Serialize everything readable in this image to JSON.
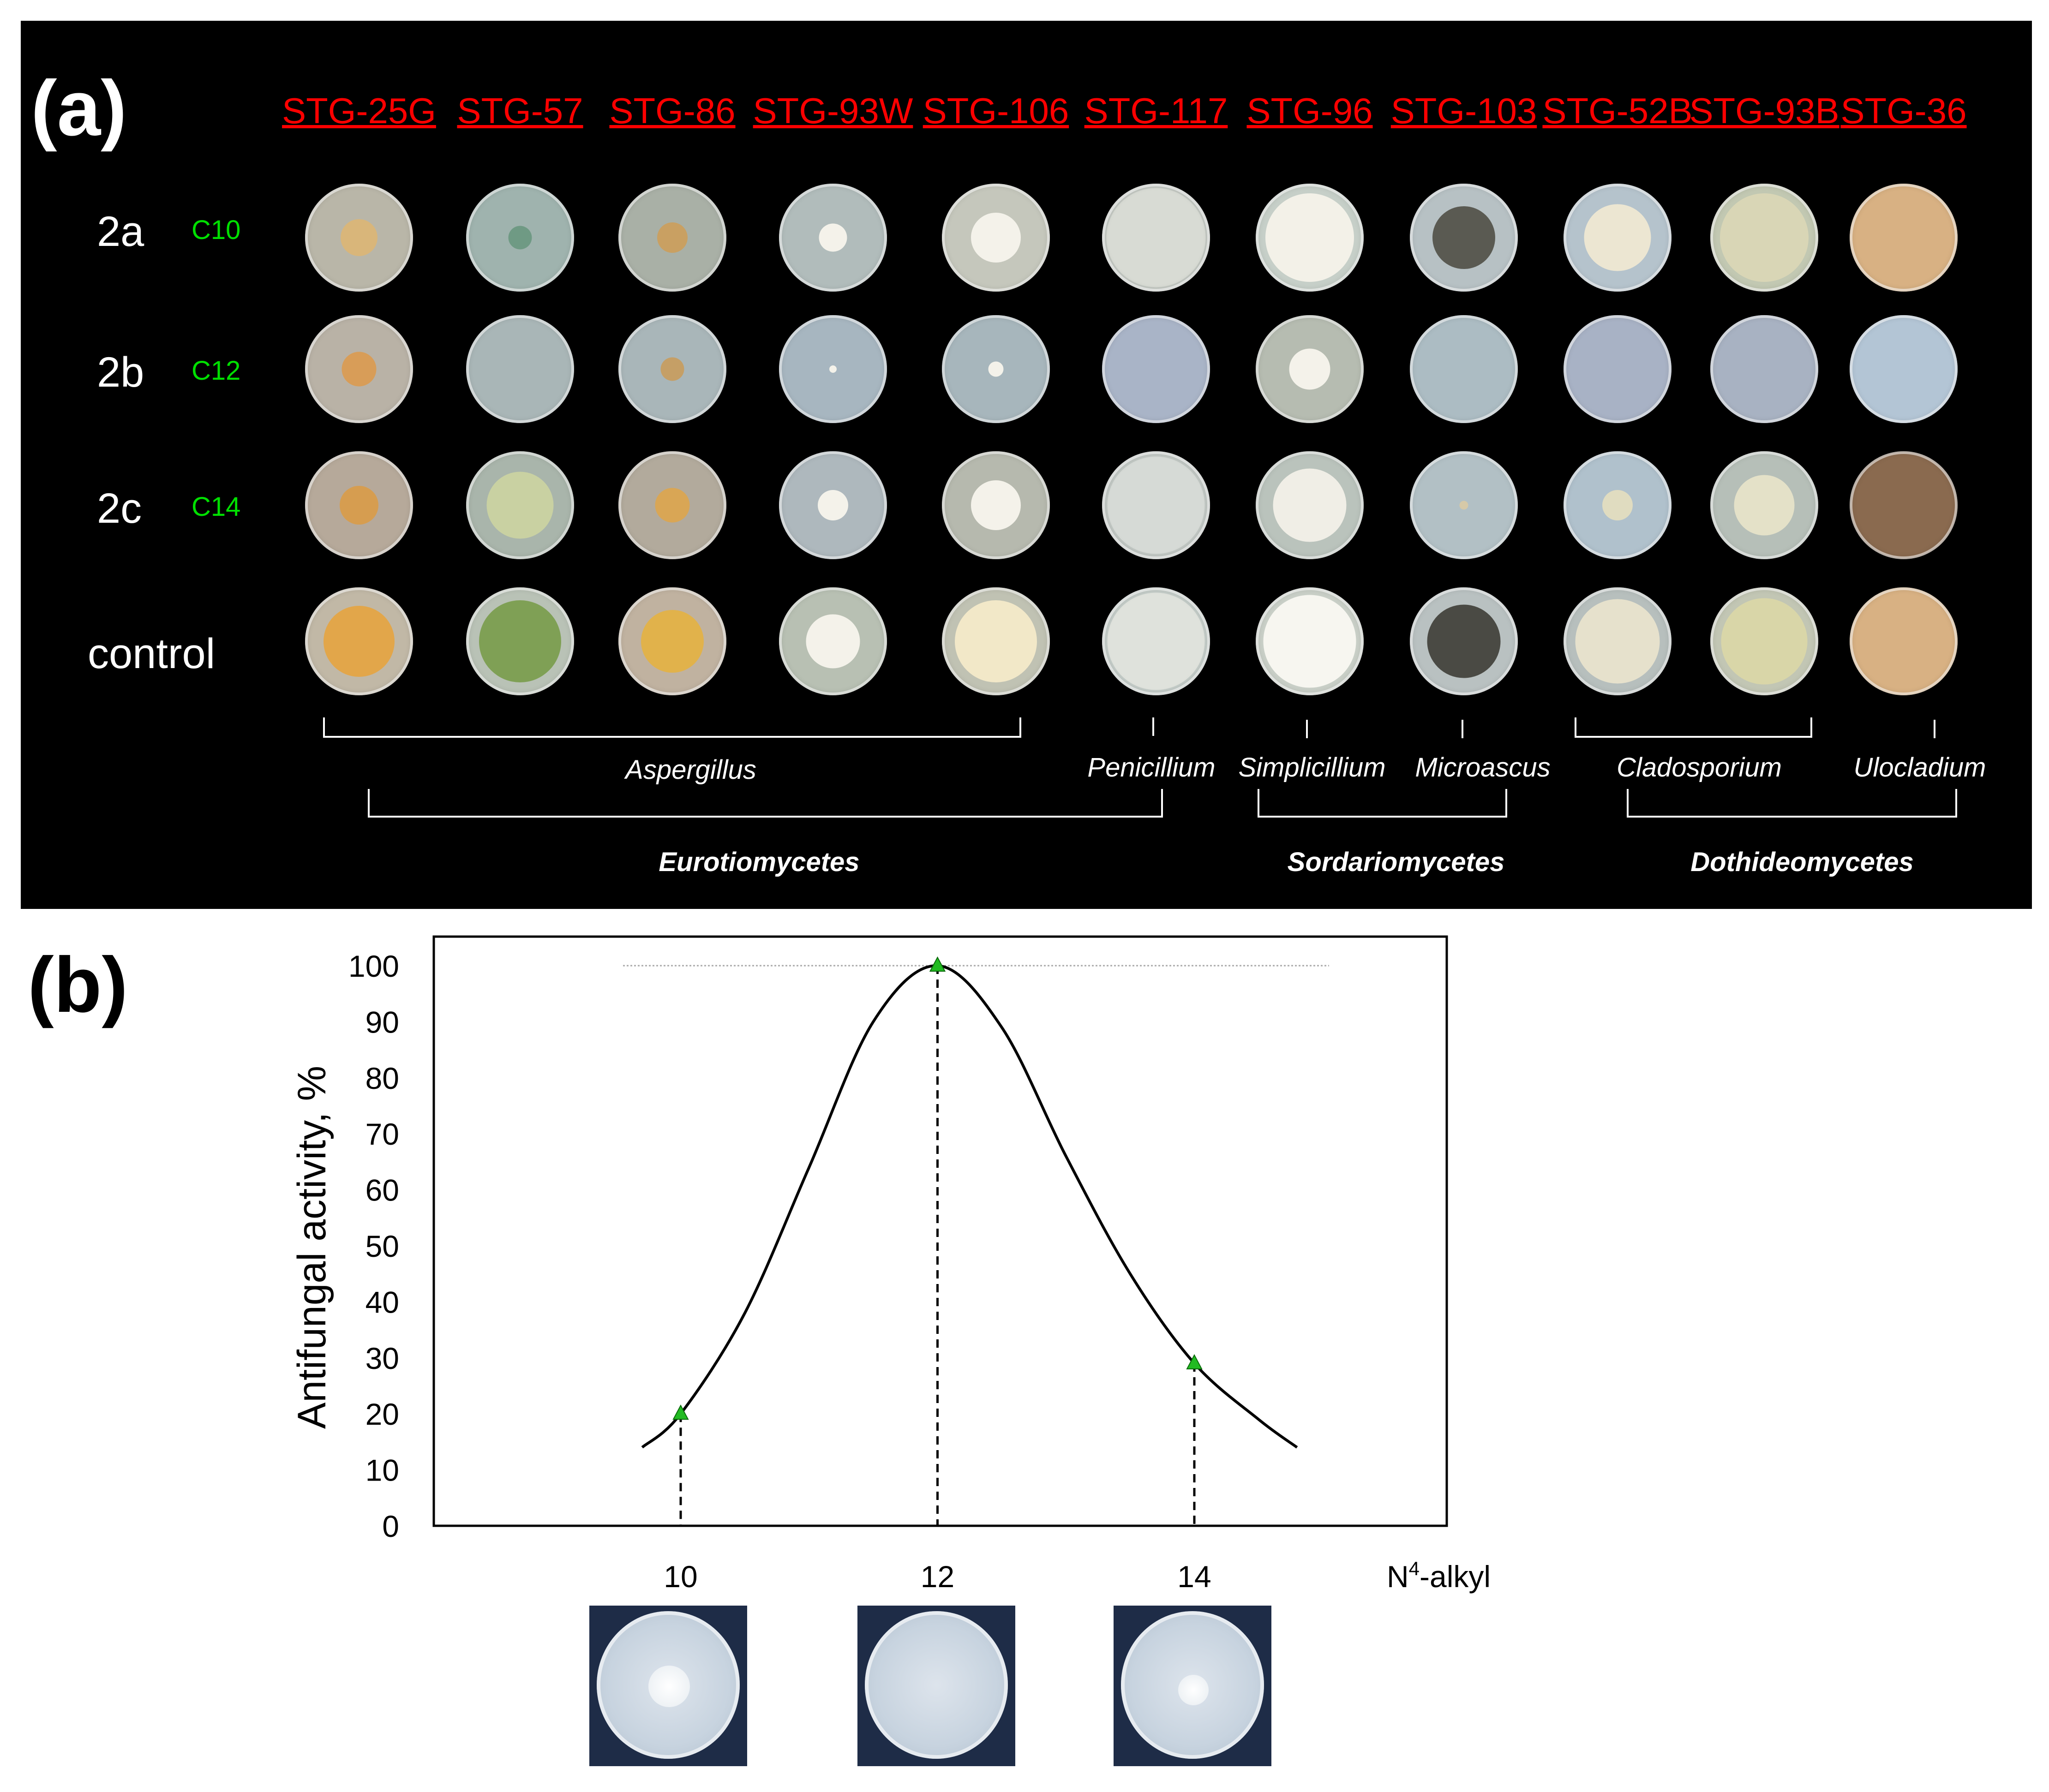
{
  "panel_a": {
    "label": "(a)",
    "strains": [
      "STG-25G",
      "STG-57",
      "STG-86",
      "STG-93W",
      "STG-106",
      "STG-117",
      "STG-96",
      "STG-103",
      "STG-52B",
      "STG-93B",
      "STG-36"
    ],
    "rows": [
      {
        "label": "2a",
        "chain": "C10"
      },
      {
        "label": "2b",
        "chain": "C12"
      },
      {
        "label": "2c",
        "chain": "C14"
      },
      {
        "label": "control",
        "chain": ""
      }
    ],
    "genera": [
      "Aspergillus",
      "Penicillium",
      "Simplicillium",
      "Microascus",
      "Cladosporium",
      "Ulocladium"
    ],
    "classes": [
      "Eurotiomycetes",
      "Sordariomycetes",
      "Dothideomycetes"
    ],
    "colors": {
      "strain_text": "#ff0000",
      "chain_text": "#00e000"
    }
  },
  "panel_b": {
    "label": "(b)",
    "x_label_prefix": "N",
    "x_label_sup": "4",
    "x_label_suffix": "-alkyl"
  },
  "chart_data": {
    "type": "line",
    "title": "",
    "xlabel": "N4-alkyl",
    "ylabel": "Antifungal activity, %",
    "ylim": [
      0,
      100
    ],
    "yticks": [
      0,
      10,
      20,
      30,
      40,
      50,
      60,
      70,
      80,
      90,
      100
    ],
    "categories": [
      "10",
      "12",
      "14"
    ],
    "x": [
      10,
      12,
      14
    ],
    "values": [
      20,
      100,
      29
    ],
    "curve": {
      "x": [
        9.7,
        10,
        10.5,
        11,
        11.5,
        12,
        12.5,
        13,
        13.5,
        14,
        14.5,
        14.8
      ],
      "y": [
        14,
        20,
        38,
        64,
        90,
        100,
        89,
        66,
        45,
        29,
        19,
        14
      ]
    },
    "marker_color": "#22bb22",
    "grid_y": [
      100
    ]
  }
}
